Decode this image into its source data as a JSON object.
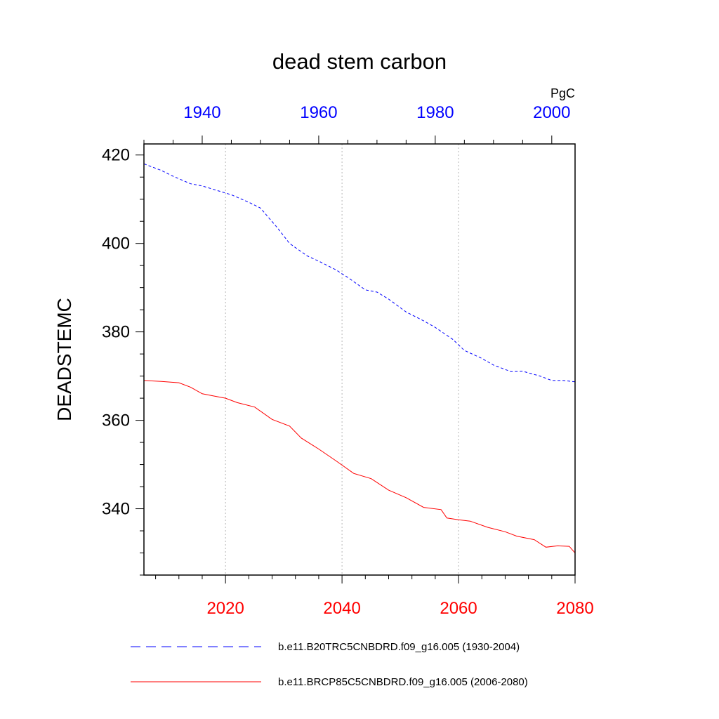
{
  "chart_data": {
    "type": "line",
    "title": "dead stem carbon",
    "units": "PgC",
    "ylabel": "DEADSTEMC",
    "ylim": [
      325,
      422.5
    ],
    "yticks": [
      340,
      360,
      380,
      400,
      420
    ],
    "yticks_minor_step": 5,
    "x_bottom": {
      "range": [
        2006,
        2080
      ],
      "ticks": [
        2020,
        2040,
        2060,
        2080
      ],
      "minor_step": 4,
      "color": "#ff0000"
    },
    "x_top": {
      "range": [
        1930,
        2004
      ],
      "ticks": [
        1940,
        1960,
        1980,
        2000
      ],
      "minor_step": 5,
      "color": "#0000ff"
    },
    "gridlines_at_bottom_x": [
      2020,
      2040,
      2060
    ],
    "series": [
      {
        "name": "b.e11.B20TRC5CNBDRD.f09_g16.005 (1930-2004)",
        "axis": "top",
        "color": "#0000ff",
        "dash": "dashed",
        "x": [
          1930,
          1933,
          1935,
          1938,
          1940,
          1943,
          1945,
          1948,
          1950,
          1953,
          1955,
          1958,
          1960,
          1963,
          1965,
          1968,
          1970,
          1972,
          1975,
          1978,
          1980,
          1983,
          1985,
          1988,
          1990,
          1993,
          1995,
          1998,
          2000,
          2002,
          2004
        ],
        "values": [
          418,
          416.5,
          415.2,
          413.5,
          413,
          411.8,
          411,
          409.3,
          408,
          403.4,
          400,
          397.2,
          396,
          394,
          392.3,
          389.5,
          389,
          387.4,
          384.5,
          382.5,
          381,
          378.3,
          375.8,
          374,
          372.5,
          371,
          371.1,
          370,
          369,
          369,
          368.7
        ]
      },
      {
        "name": "b.e11.BRCP85C5CNBDRD.f09_g16.005 (2006-2080)",
        "axis": "bottom",
        "color": "#ff0000",
        "dash": "solid",
        "x": [
          2006,
          2009,
          2012,
          2014,
          2016,
          2018,
          2020,
          2022,
          2025,
          2028,
          2031,
          2033,
          2036,
          2039,
          2042,
          2045,
          2048,
          2051,
          2054,
          2057,
          2058,
          2060,
          2062,
          2065,
          2068,
          2070,
          2073,
          2075,
          2077,
          2079,
          2080
        ],
        "values": [
          369,
          368.8,
          368.5,
          367.5,
          366,
          365.5,
          365,
          364,
          363,
          360.2,
          358.7,
          356,
          353.5,
          350.8,
          348,
          346.8,
          344.2,
          342.5,
          340.3,
          339.8,
          337.9,
          337.5,
          337.2,
          335.8,
          334.8,
          333.8,
          333,
          331.3,
          331.6,
          331.5,
          330
        ]
      }
    ],
    "legend": {
      "position": "bottom",
      "entries": [
        "b.e11.B20TRC5CNBDRD.f09_g16.005 (1930-2004)",
        "b.e11.BRCP85C5CNBDRD.f09_g16.005 (2006-2080)"
      ]
    }
  }
}
